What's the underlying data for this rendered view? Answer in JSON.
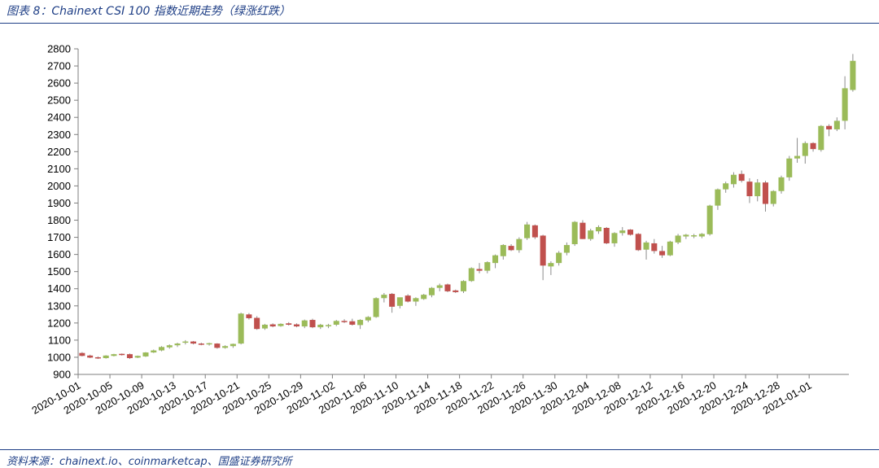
{
  "header": {
    "title": "图表 8：Chainext CSI 100 指数近期走势（绿涨红跌）"
  },
  "footer": {
    "source": "资料来源：chainext.io、coinmarketcap、国盛证券研究所"
  },
  "colors": {
    "up": "#9bbb59",
    "down": "#c0504d",
    "wick": "#8c8c8c",
    "axis": "#7f7f7f",
    "accent": "#1f3f86"
  },
  "chart_data": {
    "type": "candlestick",
    "ylim": [
      900,
      2800
    ],
    "yticks": [
      900,
      1000,
      1100,
      1200,
      1300,
      1400,
      1500,
      1600,
      1700,
      1800,
      1900,
      2000,
      2100,
      2200,
      2300,
      2400,
      2500,
      2600,
      2700,
      2800
    ],
    "x_start": "2020-10-01",
    "x_end": "2021-01-05",
    "xtick_labels": [
      "2020-10-01",
      "2020-10-05",
      "2020-10-09",
      "2020-10-13",
      "2020-10-17",
      "2020-10-21",
      "2020-10-25",
      "2020-10-29",
      "2020-11-02",
      "2020-11-06",
      "2020-11-10",
      "2020-11-14",
      "2020-11-18",
      "2020-11-22",
      "2020-11-26",
      "2020-11-30",
      "2020-12-04",
      "2020-12-08",
      "2020-12-12",
      "2020-12-16",
      "2020-12-20",
      "2020-12-24",
      "2020-12-28",
      "2021-01-01"
    ],
    "grid": false,
    "legend": "none",
    "columns": [
      "open",
      "high",
      "low",
      "close"
    ],
    "candles": [
      [
        1025,
        1030,
        1005,
        1008
      ],
      [
        1010,
        1015,
        995,
        998
      ],
      [
        1000,
        1005,
        990,
        995
      ],
      [
        995,
        1012,
        992,
        1010
      ],
      [
        1008,
        1020,
        1005,
        1018
      ],
      [
        1020,
        1022,
        1010,
        1015
      ],
      [
        1018,
        1022,
        990,
        995
      ],
      [
        998,
        1010,
        995,
        1008
      ],
      [
        1005,
        1030,
        1002,
        1028
      ],
      [
        1028,
        1045,
        1025,
        1040
      ],
      [
        1040,
        1065,
        1035,
        1060
      ],
      [
        1058,
        1075,
        1050,
        1070
      ],
      [
        1070,
        1085,
        1060,
        1080
      ],
      [
        1085,
        1100,
        1075,
        1092
      ],
      [
        1092,
        1095,
        1075,
        1080
      ],
      [
        1080,
        1085,
        1070,
        1075
      ],
      [
        1078,
        1085,
        1068,
        1082
      ],
      [
        1080,
        1082,
        1050,
        1055
      ],
      [
        1055,
        1070,
        1050,
        1065
      ],
      [
        1065,
        1080,
        1055,
        1078
      ],
      [
        1080,
        1260,
        1075,
        1255
      ],
      [
        1250,
        1258,
        1220,
        1228
      ],
      [
        1230,
        1240,
        1160,
        1165
      ],
      [
        1168,
        1195,
        1160,
        1190
      ],
      [
        1192,
        1198,
        1175,
        1180
      ],
      [
        1182,
        1198,
        1178,
        1195
      ],
      [
        1198,
        1205,
        1185,
        1190
      ],
      [
        1192,
        1198,
        1175,
        1180
      ],
      [
        1180,
        1220,
        1170,
        1215
      ],
      [
        1218,
        1225,
        1170,
        1175
      ],
      [
        1175,
        1195,
        1165,
        1190
      ],
      [
        1185,
        1195,
        1170,
        1188
      ],
      [
        1190,
        1218,
        1182,
        1212
      ],
      [
        1212,
        1222,
        1200,
        1208
      ],
      [
        1210,
        1225,
        1185,
        1190
      ],
      [
        1188,
        1222,
        1165,
        1218
      ],
      [
        1215,
        1240,
        1205,
        1235
      ],
      [
        1235,
        1350,
        1230,
        1345
      ],
      [
        1345,
        1375,
        1320,
        1365
      ],
      [
        1370,
        1375,
        1260,
        1295
      ],
      [
        1300,
        1345,
        1285,
        1350
      ],
      [
        1360,
        1368,
        1320,
        1325
      ],
      [
        1325,
        1350,
        1300,
        1345
      ],
      [
        1340,
        1370,
        1335,
        1365
      ],
      [
        1362,
        1410,
        1350,
        1405
      ],
      [
        1405,
        1430,
        1385,
        1420
      ],
      [
        1425,
        1430,
        1380,
        1385
      ],
      [
        1390,
        1395,
        1375,
        1380
      ],
      [
        1385,
        1450,
        1375,
        1445
      ],
      [
        1445,
        1525,
        1440,
        1520
      ],
      [
        1515,
        1550,
        1490,
        1505
      ],
      [
        1505,
        1560,
        1490,
        1555
      ],
      [
        1550,
        1600,
        1520,
        1595
      ],
      [
        1590,
        1660,
        1570,
        1655
      ],
      [
        1650,
        1660,
        1620,
        1625
      ],
      [
        1625,
        1700,
        1610,
        1690
      ],
      [
        1695,
        1790,
        1685,
        1775
      ],
      [
        1770,
        1775,
        1690,
        1700
      ],
      [
        1710,
        1715,
        1450,
        1535
      ],
      [
        1530,
        1560,
        1480,
        1550
      ],
      [
        1550,
        1620,
        1535,
        1610
      ],
      [
        1610,
        1670,
        1595,
        1655
      ],
      [
        1660,
        1795,
        1650,
        1790
      ],
      [
        1785,
        1800,
        1690,
        1690
      ],
      [
        1690,
        1750,
        1680,
        1740
      ],
      [
        1735,
        1770,
        1720,
        1760
      ],
      [
        1755,
        1760,
        1660,
        1665
      ],
      [
        1665,
        1730,
        1645,
        1725
      ],
      [
        1725,
        1760,
        1710,
        1740
      ],
      [
        1745,
        1748,
        1710,
        1715
      ],
      [
        1720,
        1725,
        1620,
        1625
      ],
      [
        1628,
        1680,
        1570,
        1670
      ],
      [
        1665,
        1690,
        1605,
        1620
      ],
      [
        1620,
        1650,
        1580,
        1595
      ],
      [
        1595,
        1680,
        1590,
        1675
      ],
      [
        1670,
        1720,
        1660,
        1710
      ],
      [
        1705,
        1720,
        1690,
        1715
      ],
      [
        1710,
        1720,
        1695,
        1712
      ],
      [
        1705,
        1725,
        1695,
        1720
      ],
      [
        1718,
        1890,
        1710,
        1885
      ],
      [
        1885,
        1985,
        1860,
        1980
      ],
      [
        1980,
        2025,
        1960,
        2015
      ],
      [
        2010,
        2080,
        1990,
        2065
      ],
      [
        2070,
        2090,
        2020,
        2030
      ],
      [
        2025,
        2045,
        1900,
        1940
      ],
      [
        1940,
        2040,
        1910,
        2020
      ],
      [
        2020,
        2030,
        1850,
        1895
      ],
      [
        1895,
        1975,
        1880,
        1970
      ],
      [
        1970,
        2060,
        1955,
        2050
      ],
      [
        2050,
        2175,
        2030,
        2160
      ],
      [
        2160,
        2280,
        2135,
        2175
      ],
      [
        2175,
        2260,
        2130,
        2250
      ],
      [
        2250,
        2255,
        2200,
        2215
      ],
      [
        2210,
        2355,
        2200,
        2350
      ],
      [
        2350,
        2360,
        2290,
        2330
      ],
      [
        2330,
        2400,
        2320,
        2380
      ],
      [
        2380,
        2640,
        2330,
        2570
      ],
      [
        2560,
        2770,
        2550,
        2730
      ]
    ]
  }
}
